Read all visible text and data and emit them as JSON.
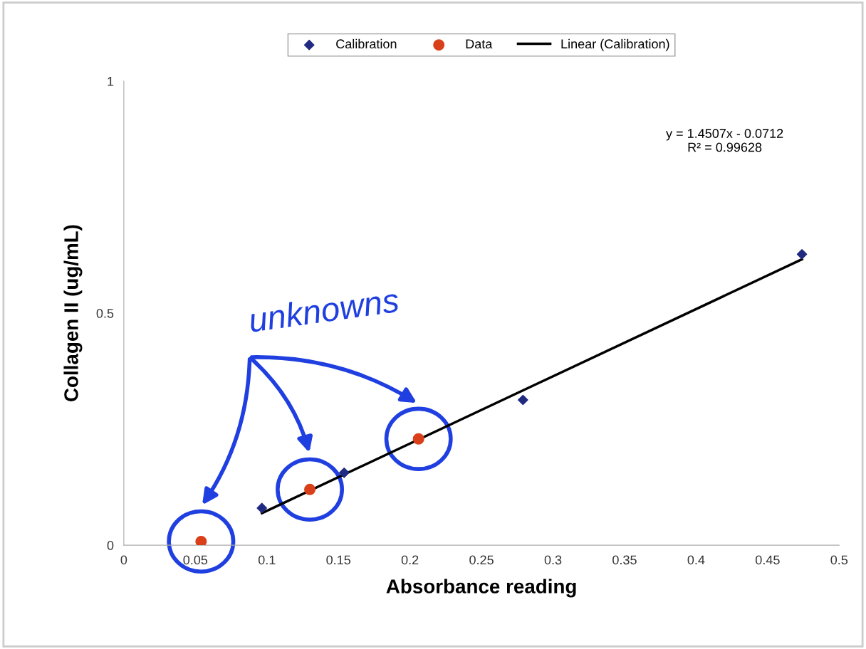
{
  "chart_data": {
    "type": "scatter",
    "xlabel": "Absorbance reading",
    "ylabel": "Collagen II (ug/mL)",
    "xlim": [
      0,
      0.5
    ],
    "xticks": [
      0,
      0.05,
      0.1,
      0.15,
      0.2,
      0.25,
      0.3,
      0.35,
      0.4,
      0.45,
      0.5
    ],
    "ylim": [
      0,
      1
    ],
    "yticks": [
      0,
      0.5,
      1
    ],
    "grid": false,
    "legend": "top",
    "series": [
      {
        "name": "Calibration",
        "marker": "diamond",
        "color": "#1f2a80",
        "x": [
          0.0965,
          0.154,
          0.279,
          0.474
        ],
        "values": [
          0.08,
          0.156,
          0.313,
          0.627
        ]
      },
      {
        "name": "Data",
        "marker": "circle",
        "color": "#d9401a",
        "x": [
          0.054,
          0.13,
          0.206
        ],
        "values": [
          0.008,
          0.12,
          0.229
        ]
      },
      {
        "name": "Linear (Calibration)",
        "type": "line",
        "marker": "none",
        "line_style": "solid",
        "color": "#000000",
        "x": [
          0.0965,
          0.474
        ],
        "values": [
          0.069,
          0.616
        ]
      }
    ],
    "annotations": [
      "y = 1.4507x - 0.0712\nR² = 0.99628",
      "unknowns"
    ]
  }
}
